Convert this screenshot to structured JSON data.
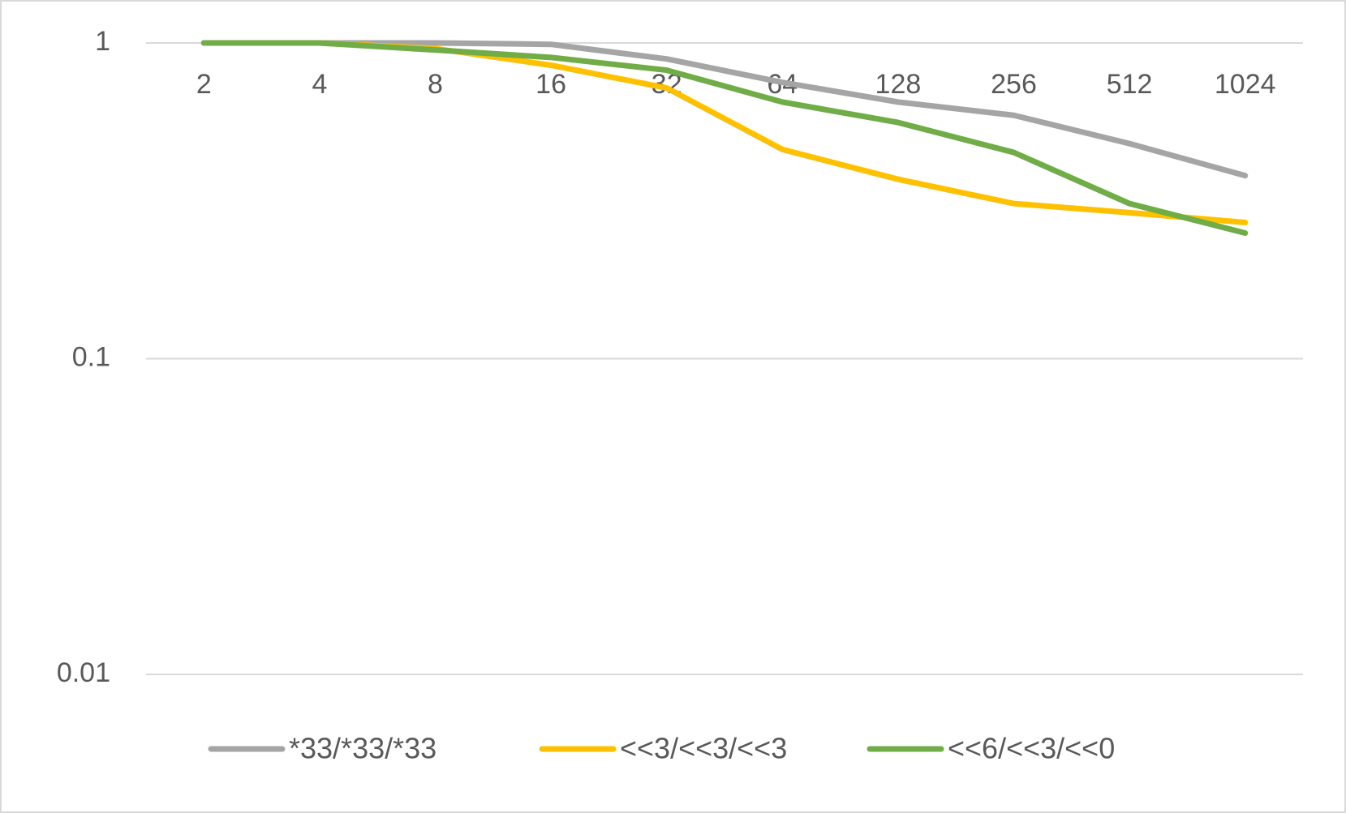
{
  "chart_data": {
    "type": "line",
    "log_scale": true,
    "grid": true,
    "categories": [
      "2",
      "4",
      "8",
      "16",
      "32",
      "64",
      "128",
      "256",
      "512",
      "1024"
    ],
    "ylim": [
      0.01,
      1
    ],
    "yticks": [
      1,
      0.1,
      0.01
    ],
    "series": [
      {
        "name": "*33/*33/*33",
        "color": "#a5a5a5",
        "values": [
          1,
          1,
          1,
          0.99,
          0.89,
          0.75,
          0.65,
          0.59,
          0.48,
          0.38
        ]
      },
      {
        "name": "<<3/<<3/<<3",
        "color": "#ffc000",
        "values": [
          1,
          1,
          0.96,
          0.85,
          0.72,
          0.46,
          0.37,
          0.31,
          0.29,
          0.27
        ]
      },
      {
        "name": "<<6/<<3/<<0",
        "color": "#70ad47",
        "values": [
          1,
          1,
          0.95,
          0.9,
          0.82,
          0.65,
          0.56,
          0.45,
          0.31,
          0.25
        ]
      }
    ],
    "legend": "bottom"
  }
}
